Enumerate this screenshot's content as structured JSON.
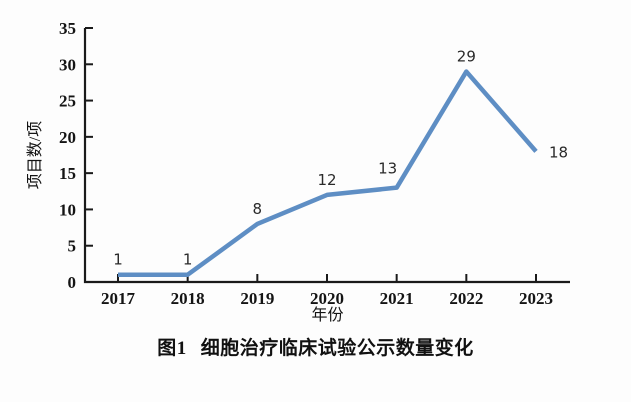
{
  "chart_data": {
    "type": "line",
    "categories": [
      "2017",
      "2018",
      "2019",
      "2020",
      "2021",
      "2022",
      "2023"
    ],
    "values": [
      1,
      1,
      8,
      12,
      13,
      29,
      18
    ],
    "title": "",
    "xlabel": "年份",
    "ylabel": "项目数/项",
    "ylim": [
      0,
      35
    ],
    "ytick_step": 5,
    "yticks": [
      0,
      5,
      10,
      15,
      20,
      25,
      30,
      35
    ],
    "grid": false,
    "legend_position": "none",
    "line_color": "#5E8EC4",
    "axis_color": "#1a1a1a",
    "label_positions": [
      "above",
      "above",
      "above",
      "above",
      "above-left",
      "above",
      "right"
    ]
  },
  "caption": {
    "figure_label": "图1",
    "figure_title": "细胞治疗临床试验公示数量变化"
  }
}
